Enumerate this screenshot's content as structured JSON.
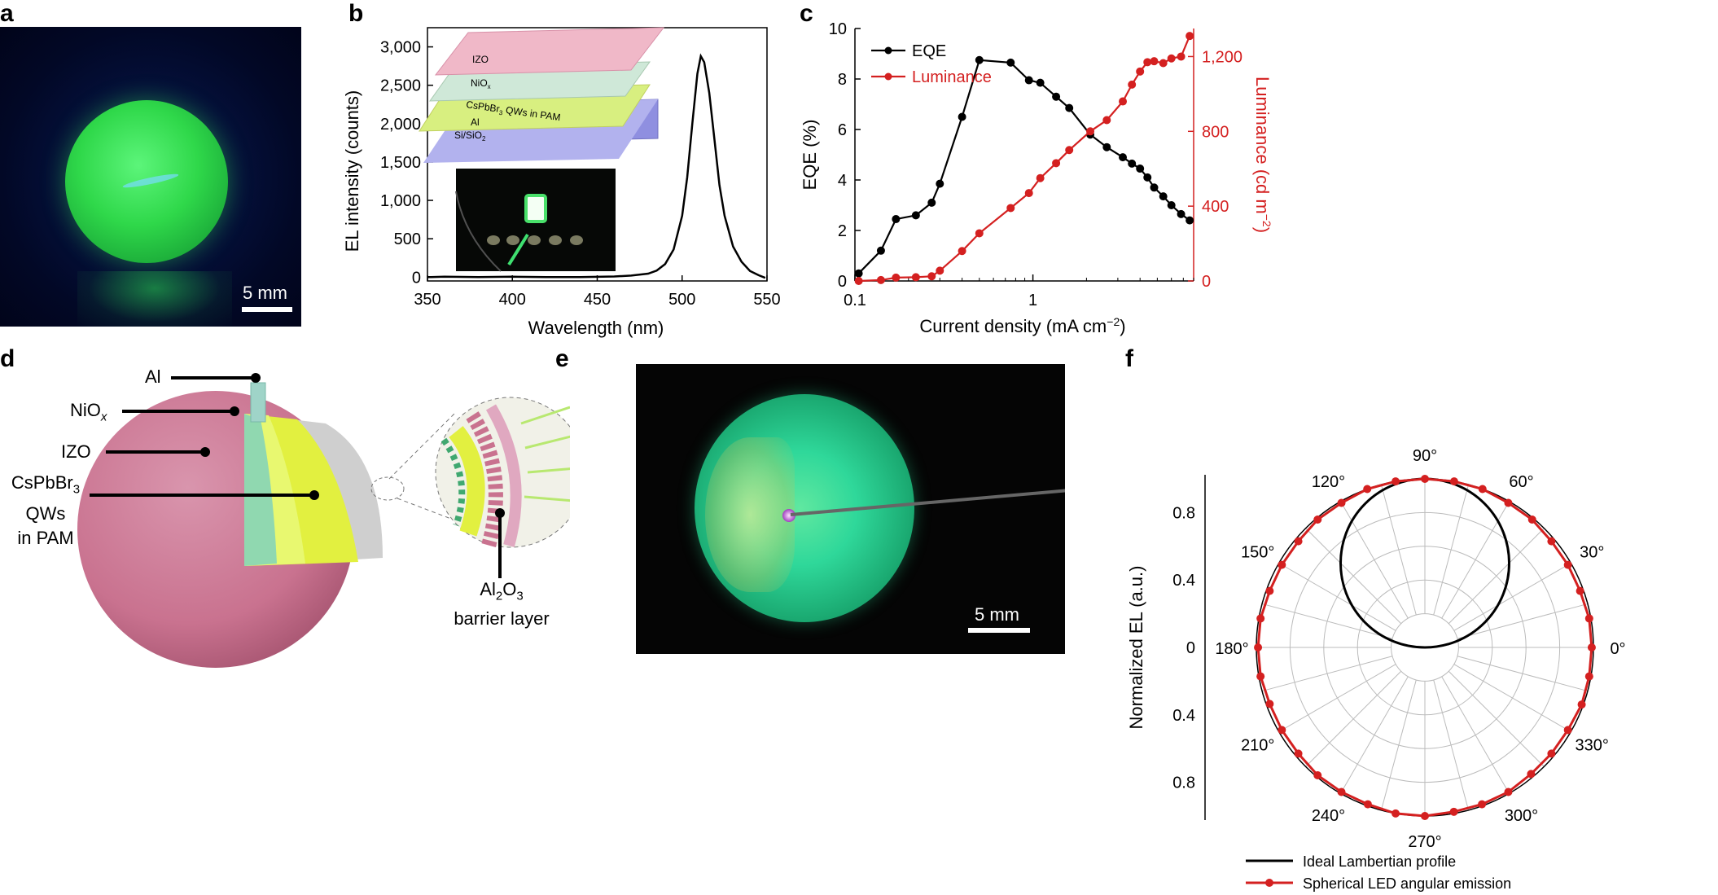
{
  "panels": {
    "a": {
      "letter": "a",
      "scale_bar": "5 mm"
    },
    "b": {
      "letter": "b",
      "ylabel": "EL intensity (counts)",
      "xlabel": "Wavelength (nm)",
      "layers": {
        "izo": "IZO",
        "nio": "NiO",
        "nio_sub": "x",
        "qw_pre": "CsPbBr",
        "qw_sub": "3",
        "qw_post": " QWs in PAM",
        "al": "Al",
        "sub_pre": "Si/SiO",
        "sub_sub": "2"
      }
    },
    "c": {
      "letter": "c",
      "ylabel": "EQE (%)",
      "ylabel2_pre": "Luminance (cd m",
      "ylabel2_sup": "−2",
      "ylabel2_post": ")",
      "xlabel_pre": "Current density (mA cm",
      "xlabel_sup": "−2",
      "xlabel_post": ")"
    },
    "d": {
      "letter": "d",
      "labels": {
        "al": "Al",
        "nio_pre": "NiO",
        "nio_sub": "x",
        "izo": "IZO",
        "qw_line1_pre": "CsPbBr",
        "qw_line1_sub": "3",
        "qw_line2": "QWs",
        "qw_line3": "in PAM",
        "barrier_pre": "Al",
        "barrier_sub1": "2",
        "barrier_mid": "O",
        "barrier_sub2": "3",
        "barrier_line2": "barrier layer"
      }
    },
    "e": {
      "letter": "e",
      "scale_bar": "5 mm"
    },
    "f": {
      "letter": "f",
      "ylabel": "Normalized EL (a.u.)",
      "angle_labels": [
        "0°",
        "30°",
        "60°",
        "90°",
        "120°",
        "150°",
        "180°",
        "210°",
        "240°",
        "270°",
        "300°",
        "330°"
      ],
      "radial_labels": [
        "0.8",
        "0.4",
        "0",
        "0.4",
        "0.8"
      ],
      "legend": [
        "Ideal Lambertian profile",
        "Spherical LED angular emission"
      ]
    }
  },
  "colors": {
    "green_glow": "#2fd84a",
    "red": "#d42020",
    "black": "#000000",
    "pink": "#c9728f",
    "layer_izo": "#f0b8c8",
    "layer_nio": "#cfe8d8",
    "layer_qw": "#d8ef80",
    "layer_al": "#c0c0d8",
    "layer_sub": "#8f8fe0"
  },
  "chart_data": [
    {
      "type": "line",
      "panel": "b",
      "xlim": [
        350,
        550
      ],
      "ylim": [
        -50,
        3250
      ],
      "xticks": [
        "350",
        "400",
        "450",
        "500",
        "550"
      ],
      "yticks": [
        "0",
        "500",
        "1,000",
        "1,500",
        "2,000",
        "2,500",
        "3,000"
      ],
      "ytick_values": [
        0,
        500,
        1000,
        1500,
        2000,
        2500,
        3000
      ],
      "xtick_values": [
        350,
        400,
        450,
        500,
        550
      ],
      "series": [
        {
          "x": [
            350,
            352,
            360,
            380,
            400,
            420,
            440,
            460,
            470,
            480,
            485,
            490,
            495,
            500,
            503,
            506,
            509,
            511,
            513,
            516,
            519,
            522,
            525,
            530,
            535,
            540,
            545,
            549
          ],
          "y": [
            0,
            0,
            5,
            0,
            5,
            0,
            0,
            8,
            20,
            45,
            85,
            170,
            360,
            800,
            1300,
            2000,
            2650,
            2880,
            2800,
            2400,
            1800,
            1200,
            800,
            400,
            200,
            80,
            25,
            -10
          ]
        }
      ]
    },
    {
      "type": "line",
      "panel": "c",
      "xscale": "log",
      "xlim": [
        0.1,
        8
      ],
      "ylim": [
        0,
        10
      ],
      "y2lim": [
        0,
        1350
      ],
      "xticks": [
        "0.1",
        "1"
      ],
      "xtick_values": [
        0.1,
        1
      ],
      "yticks": [
        "0",
        "2",
        "4",
        "6",
        "8",
        "10"
      ],
      "ytick_values": [
        0,
        2,
        4,
        6,
        8,
        10
      ],
      "y2ticks": [
        "0",
        "400",
        "800",
        "1,200"
      ],
      "y2tick_values": [
        0,
        400,
        800,
        1200
      ],
      "legend_position": "top-left",
      "series": [
        {
          "name": "EQE",
          "axis": "left",
          "color": "#000000",
          "x": [
            0.105,
            0.14,
            0.17,
            0.22,
            0.27,
            0.3,
            0.4,
            0.5,
            0.75,
            0.95,
            1.1,
            1.35,
            1.6,
            2.1,
            2.6,
            3.2,
            3.6,
            4.0,
            4.4,
            4.8,
            5.4,
            6.0,
            6.8,
            7.6
          ],
          "y": [
            0.3,
            1.2,
            2.45,
            2.6,
            3.1,
            3.85,
            6.5,
            8.75,
            8.65,
            7.95,
            7.85,
            7.3,
            6.85,
            5.8,
            5.3,
            4.9,
            4.65,
            4.45,
            4.1,
            3.7,
            3.35,
            3.0,
            2.65,
            2.4
          ]
        },
        {
          "name": "Luminance",
          "axis": "right",
          "color": "#d42020",
          "x": [
            0.105,
            0.14,
            0.17,
            0.22,
            0.27,
            0.3,
            0.4,
            0.5,
            0.75,
            0.95,
            1.1,
            1.35,
            1.6,
            2.1,
            2.6,
            3.2,
            3.6,
            4.0,
            4.4,
            4.8,
            5.4,
            6.0,
            6.8,
            7.6
          ],
          "y": [
            0,
            5,
            18,
            20,
            25,
            55,
            160,
            255,
            390,
            470,
            550,
            630,
            700,
            800,
            860,
            960,
            1050,
            1120,
            1170,
            1175,
            1165,
            1190,
            1200,
            1310
          ]
        }
      ]
    },
    {
      "type": "polar",
      "panel": "f",
      "rlim": [
        0,
        1
      ],
      "theta_ticks_deg": [
        0,
        30,
        60,
        90,
        120,
        150,
        180,
        210,
        240,
        270,
        300,
        330
      ],
      "series": [
        {
          "name": "Ideal Lambertian profile",
          "color": "#000000",
          "model": "cos(theta - 90deg), upper half"
        },
        {
          "name": "Spherical LED angular emission",
          "color": "#d42020",
          "theta_deg": [
            0,
            10,
            20,
            30,
            40,
            50,
            60,
            70,
            80,
            90,
            100,
            110,
            120,
            130,
            140,
            150,
            160,
            170,
            180,
            190,
            200,
            210,
            220,
            230,
            240,
            250,
            260,
            270,
            280,
            290,
            300,
            310,
            320,
            330,
            340,
            350
          ],
          "r": [
            0.99,
            0.99,
            0.98,
            0.98,
            0.98,
            0.99,
            0.99,
            1.0,
            1.0,
            1.0,
            1.0,
            1.0,
            0.99,
            0.99,
            0.98,
            0.98,
            0.98,
            0.99,
            0.99,
            0.99,
            0.98,
            0.98,
            0.98,
            0.99,
            0.99,
            0.99,
            1.0,
            1.0,
            0.99,
            0.99,
            0.99,
            0.98,
            0.98,
            0.98,
            0.99,
            0.99
          ]
        }
      ]
    }
  ]
}
